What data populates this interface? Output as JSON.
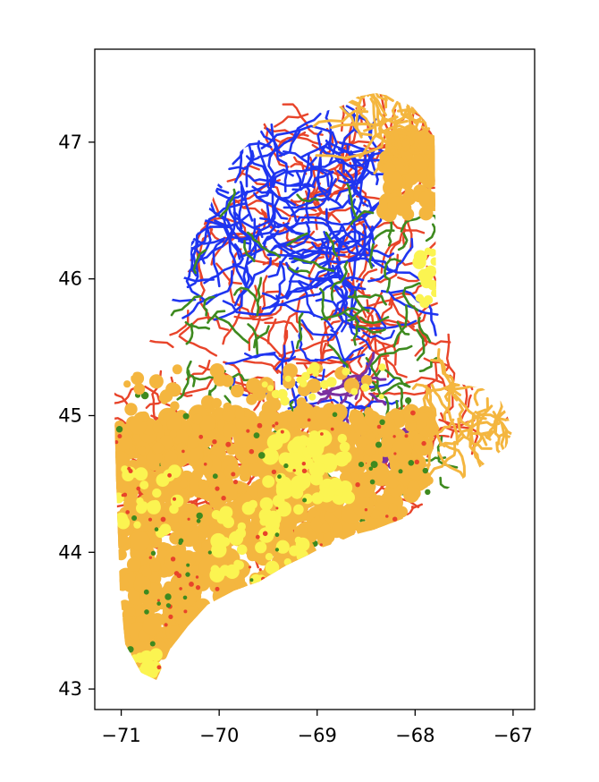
{
  "map": {
    "axes": {
      "x_ticks": [
        {
          "value": -71,
          "label": "−71"
        },
        {
          "value": -70,
          "label": "−70"
        },
        {
          "value": -69,
          "label": "−69"
        },
        {
          "value": -68,
          "label": "−68"
        },
        {
          "value": -67,
          "label": "−67"
        }
      ],
      "y_ticks": [
        {
          "value": 43,
          "label": "43"
        },
        {
          "value": 44,
          "label": "44"
        },
        {
          "value": 45,
          "label": "45"
        },
        {
          "value": 46,
          "label": "46"
        },
        {
          "value": 47,
          "label": "47"
        }
      ],
      "xlim": [
        -71.27,
        -66.78
      ],
      "ylim": [
        42.85,
        47.68
      ]
    },
    "category_colors": {
      "blue": "#1f35f0",
      "red": "#e8442a",
      "green": "#3e8a1f",
      "orange": "#f4b63f",
      "yellow": "#fbf451",
      "purple": "#7b30a0"
    }
  }
}
